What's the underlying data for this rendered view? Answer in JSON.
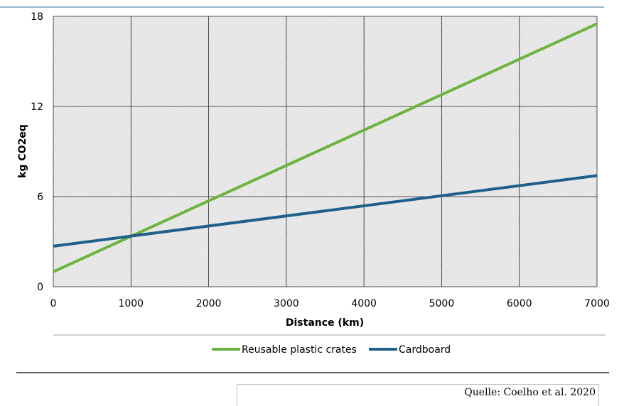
{
  "chart_data": {
    "type": "line",
    "title": "",
    "xlabel": "Distance (km)",
    "ylabel": "kg CO2eq",
    "xlim": [
      0,
      7000
    ],
    "ylim": [
      0,
      18
    ],
    "x_ticks": [
      "0",
      "1000",
      "2000",
      "3000",
      "4000",
      "5000",
      "6000",
      "7000"
    ],
    "y_ticks": [
      "0",
      "6",
      "12",
      "18"
    ],
    "grid": true,
    "legend_position": "bottom",
    "series": [
      {
        "name": "Reusable plastic crates",
        "color": "#6cb33f",
        "x": [
          0,
          7000
        ],
        "y": [
          1.0,
          17.5
        ]
      },
      {
        "name": "Cardboard",
        "color": "#1f5f8b",
        "x": [
          0,
          7000
        ],
        "y": [
          2.7,
          7.4
        ]
      }
    ]
  },
  "source": "Quelle: Coelho et al. 2020"
}
